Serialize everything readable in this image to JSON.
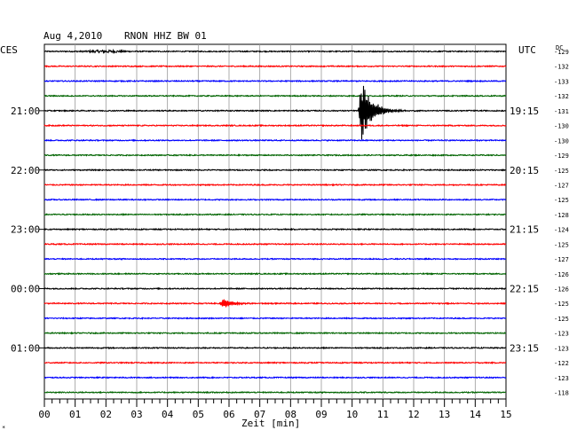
{
  "header": {
    "date": "Aug 4,2010",
    "station": "RNON HHZ BW 01",
    "left_tz": "CES",
    "right_tz": "UTC",
    "dc_label": "DC"
  },
  "chart_data": {
    "type": "line",
    "title": "Aug 4,2010   RNON HHZ BW 01",
    "xlabel": "Zeit [min]",
    "ylabel": "",
    "xlim": [
      0,
      15
    ],
    "x_ticks": [
      "00",
      "01",
      "02",
      "03",
      "04",
      "05",
      "06",
      "07",
      "08",
      "09",
      "10",
      "11",
      "12",
      "13",
      "14",
      "15"
    ],
    "grid": true,
    "left_hour_labels": [
      {
        "trace": 4,
        "label": "21:00"
      },
      {
        "trace": 8,
        "label": "22:00"
      },
      {
        "trace": 12,
        "label": "23:00"
      },
      {
        "trace": 16,
        "label": "00:00"
      },
      {
        "trace": 20,
        "label": "01:00"
      }
    ],
    "right_utc_labels": [
      {
        "trace": 4,
        "label": "19:15"
      },
      {
        "trace": 8,
        "label": "20:15"
      },
      {
        "trace": 12,
        "label": "21:15"
      },
      {
        "trace": 16,
        "label": "22:15"
      },
      {
        "trace": 20,
        "label": "23:15"
      }
    ],
    "trace_colors": [
      "#000000",
      "#ff0000",
      "#0000ff",
      "#006400"
    ],
    "dc_offsets": [
      -129,
      -132,
      -133,
      -132,
      -131,
      -130,
      -130,
      -129,
      -125,
      -127,
      -125,
      -128,
      -124,
      -125,
      -127,
      -126,
      -126,
      -125,
      -125,
      -123,
      -123,
      -122,
      -123,
      -118
    ],
    "events": [
      {
        "trace": 4,
        "start_min": 10.2,
        "peak_amplitude": 3.2,
        "duration_min": 1.2,
        "label": "earthquake"
      },
      {
        "trace": 17,
        "start_min": 5.7,
        "peak_amplitude": 0.55,
        "duration_min": 1.1,
        "label": "local event"
      }
    ],
    "noise_bursts": [
      {
        "trace": 0,
        "center_min": 2.0,
        "width_min": 1.2,
        "amplitude": 0.2
      }
    ]
  }
}
